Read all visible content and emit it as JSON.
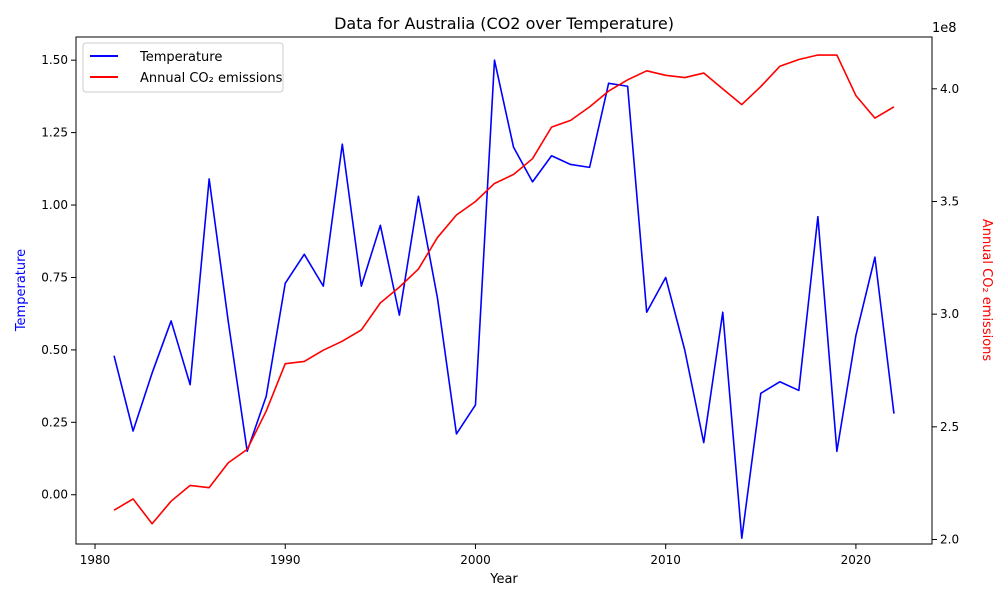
{
  "chart_data": {
    "type": "line",
    "title": "Data for Australia (CO2 over Temperature)",
    "xlabel": "Year",
    "ylabel_left": "Temperature",
    "ylabel_right": "Annual CO₂ emissions",
    "right_axis_multiplier": "1e8",
    "xlim": [
      1979,
      2024
    ],
    "ylim_left": [
      -0.17,
      1.58
    ],
    "ylim_right": [
      1.98,
      4.23
    ],
    "x_ticks": [
      1980,
      1990,
      2000,
      2010,
      2020
    ],
    "y_ticks_left": [
      0.0,
      0.25,
      0.5,
      0.75,
      1.0,
      1.25,
      1.5
    ],
    "y_tick_labels_left": [
      "0.00",
      "0.25",
      "0.50",
      "0.75",
      "1.00",
      "1.25",
      "1.50"
    ],
    "y_ticks_right": [
      2.0,
      2.5,
      3.0,
      3.5,
      4.0
    ],
    "y_tick_labels_right": [
      "2.0",
      "2.5",
      "3.0",
      "3.5",
      "4.0"
    ],
    "legend_position": "top-left",
    "grid": false,
    "x": [
      1981,
      1982,
      1983,
      1984,
      1985,
      1986,
      1987,
      1988,
      1989,
      1990,
      1991,
      1992,
      1993,
      1994,
      1995,
      1996,
      1997,
      1998,
      1999,
      2000,
      2001,
      2002,
      2003,
      2004,
      2005,
      2006,
      2007,
      2008,
      2009,
      2010,
      2011,
      2012,
      2013,
      2014,
      2015,
      2016,
      2017,
      2018,
      2019,
      2020,
      2021,
      2022
    ],
    "series": [
      {
        "name": "Temperature",
        "axis": "left",
        "color": "#0000ff",
        "values": [
          0.48,
          0.22,
          0.42,
          0.6,
          0.38,
          1.09,
          0.6,
          0.15,
          0.34,
          0.73,
          0.83,
          0.72,
          1.21,
          0.72,
          0.93,
          0.62,
          1.03,
          0.68,
          0.21,
          0.31,
          1.5,
          1.2,
          1.08,
          1.17,
          1.14,
          1.13,
          1.42,
          1.41,
          0.63,
          0.75,
          0.5,
          0.18,
          0.63,
          -0.15,
          0.35,
          0.39,
          0.36,
          0.96,
          0.15,
          0.55,
          0.82,
          0.28
        ]
      },
      {
        "name": "Annual CO₂ emissions",
        "axis": "right",
        "color": "#ff0000",
        "values": [
          2.13,
          2.18,
          2.07,
          2.17,
          2.24,
          2.23,
          2.34,
          2.4,
          2.57,
          2.78,
          2.79,
          2.84,
          2.88,
          2.93,
          3.05,
          3.12,
          3.2,
          3.34,
          3.44,
          3.5,
          3.58,
          3.62,
          3.69,
          3.83,
          3.86,
          3.92,
          3.99,
          4.04,
          4.08,
          4.06,
          4.05,
          4.07,
          4.0,
          3.93,
          4.01,
          4.1,
          4.13,
          4.15,
          4.15,
          3.97,
          3.87,
          3.92
        ]
      }
    ]
  }
}
